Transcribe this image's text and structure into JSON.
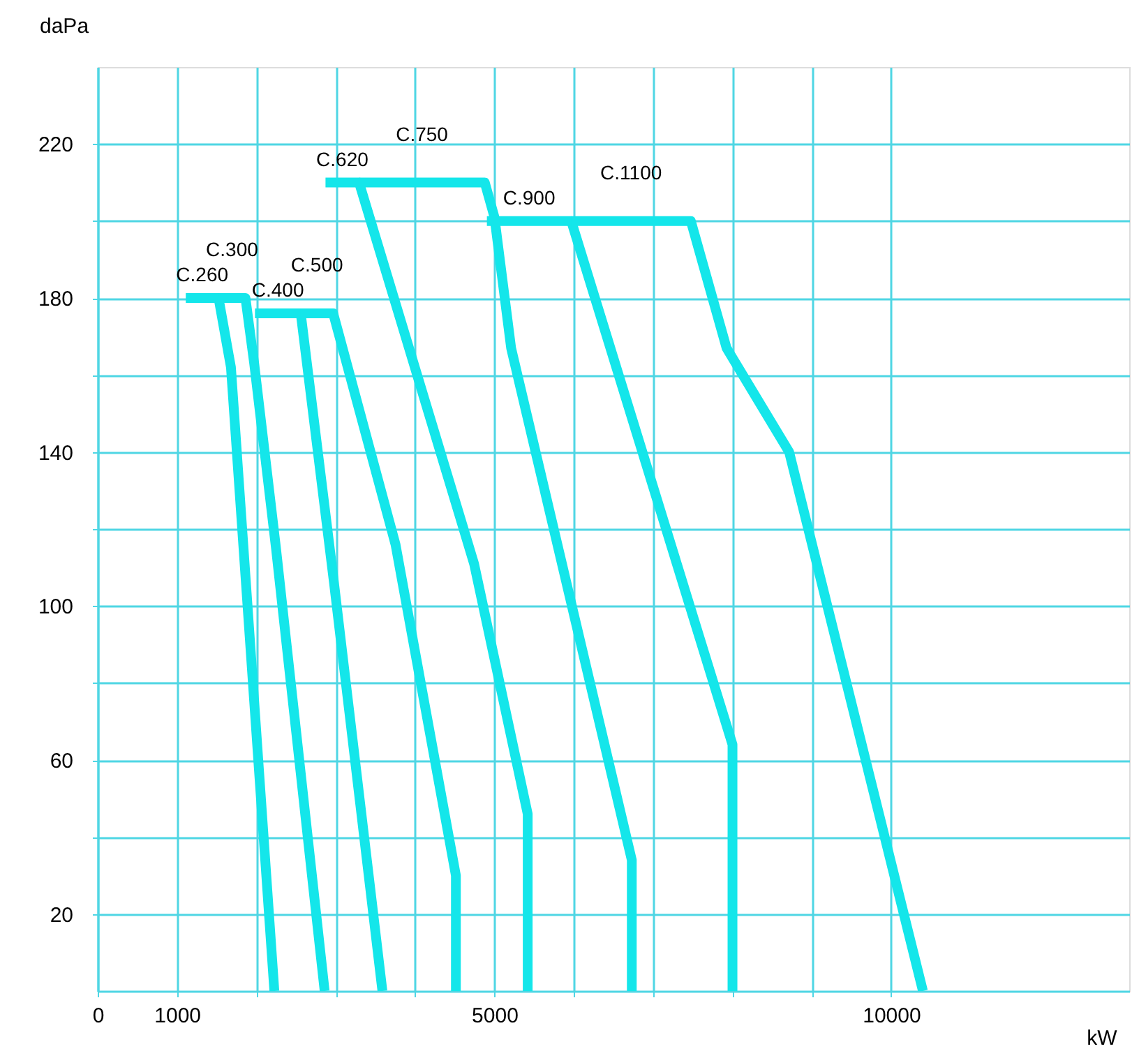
{
  "chart_data": {
    "type": "line",
    "xlabel": "kW",
    "ylabel": "daPa",
    "xlim": [
      0,
      13000
    ],
    "xticks": [
      0,
      1000,
      {
        "value": 2000,
        "label": null
      },
      {
        "value": 3000,
        "label": null
      },
      {
        "value": 4000,
        "label": null
      },
      5000,
      {
        "value": 6000,
        "label": null
      },
      {
        "value": 7000,
        "label": null
      },
      {
        "value": 8000,
        "label": null
      },
      {
        "value": 9000,
        "label": null
      },
      10000
    ],
    "ylim": [
      0,
      240
    ],
    "yticks": [
      20,
      {
        "value": 40,
        "label": null
      },
      60,
      {
        "value": 80,
        "label": null
      },
      100,
      {
        "value": 120,
        "label": null
      },
      140,
      {
        "value": 160,
        "label": null
      },
      180,
      {
        "value": 200,
        "label": null
      },
      220
    ],
    "grid": true,
    "marker": "none",
    "line_style": "solid",
    "series": [
      {
        "name": "C.260",
        "color": "#14e6ea",
        "x": [
          1110,
          1523,
          1679,
          2226
        ],
        "values": [
          180,
          180,
          162,
          0
        ]
      },
      {
        "name": "C.300",
        "color": "#14e6ea",
        "x": [
          1523,
          1862,
          1972,
          2247,
          2860
        ],
        "values": [
          180,
          180,
          163,
          115,
          0
        ]
      },
      {
        "name": "C.400",
        "color": "#14e6ea",
        "x": [
          1982,
          2559,
          2978,
          3588
        ],
        "values": [
          176,
          176,
          106,
          0
        ]
      },
      {
        "name": "C.500",
        "color": "#14e6ea",
        "x": [
          2559,
          2968,
          3753,
          4514,
          4514
        ],
        "values": [
          176,
          176,
          116,
          30,
          0
        ]
      },
      {
        "name": "C.620",
        "color": "#14e6ea",
        "x": [
          2871,
          3294,
          4743,
          5419,
          5419
        ],
        "values": [
          210,
          210,
          111,
          46,
          0
        ]
      },
      {
        "name": "C.750",
        "color": "#14e6ea",
        "x": [
          3294,
          4878,
          5000,
          5210,
          6731,
          6731
        ],
        "values": [
          210,
          210,
          201,
          167,
          34,
          0
        ]
      },
      {
        "name": "C.900",
        "color": "#14e6ea",
        "x": [
          4905,
          5968,
          8000,
          8000
        ],
        "values": [
          200,
          200,
          64,
          0
        ]
      },
      {
        "name": "C.1100",
        "color": "#14e6ea",
        "x": [
          5968,
          7475,
          7925,
          8714,
          10400
        ],
        "values": [
          200,
          200,
          167,
          140,
          0
        ]
      }
    ]
  }
}
